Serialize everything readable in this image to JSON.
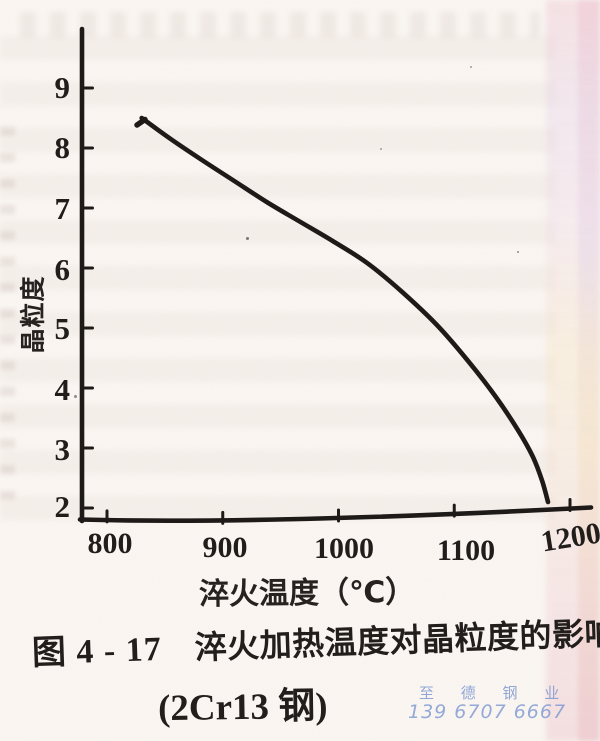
{
  "chart_data": {
    "type": "line",
    "title": "",
    "xlabel": "淬火温度（℃）",
    "ylabel": "晶粒度",
    "x_ticks": [
      "800",
      "900",
      "1000",
      "1100",
      "1200"
    ],
    "y_ticks": [
      "9",
      "8",
      "7",
      "6",
      "5",
      "4",
      "3",
      "2"
    ],
    "xlim": [
      800,
      1215
    ],
    "ylim": [
      2,
      9.8
    ],
    "grid": false,
    "legend_position": "none",
    "series": [
      {
        "name": "2Cr13钢 晶粒度",
        "x": [
          830,
          855,
          882,
          910,
          938,
          966,
          995,
          1025,
          1055,
          1085,
          1112,
          1136,
          1155,
          1168,
          1176,
          1181
        ],
        "y": [
          8.5,
          8.15,
          7.8,
          7.45,
          7.1,
          6.78,
          6.45,
          6.08,
          5.6,
          5.05,
          4.45,
          3.85,
          3.3,
          2.85,
          2.45,
          2.1
        ]
      }
    ]
  },
  "caption": {
    "figure_number": "图 4 - 17",
    "title": "淬火加热温度对晶粒度的影响",
    "subtitle": "(2Cr13 钢)"
  },
  "watermark": {
    "name": "至 德 钢 业",
    "phone": "139 6707 6667",
    "color": "#7e98d0"
  },
  "ink_color": "#1d1a18"
}
